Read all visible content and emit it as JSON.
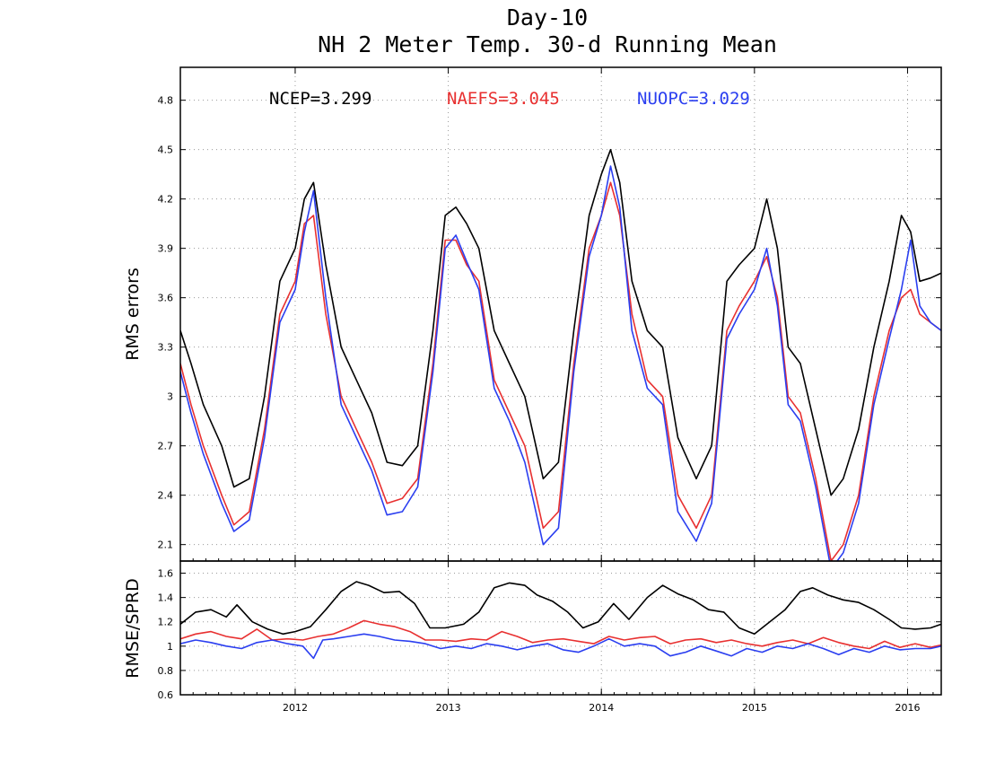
{
  "chart_data": [
    {
      "type": "line",
      "title": "Day-10",
      "subtitle": "NH 2 Meter Temp. 30-d Running Mean",
      "xlabel": "",
      "ylabel": "RMS errors",
      "xlim": [
        2011.25,
        2016.22
      ],
      "ylim": [
        2.0,
        5.0
      ],
      "yticks": [
        2.1,
        2.4,
        2.7,
        3,
        3.3,
        3.6,
        3.9,
        4.2,
        4.5,
        4.8
      ],
      "ytick_labels": [
        "2.1",
        "2.4",
        "2.7",
        "3",
        "3.3",
        "3.6",
        "3.9",
        "4.2",
        "4.5",
        "4.8"
      ],
      "xticks": [
        2012,
        2013,
        2014,
        2015,
        2016
      ],
      "xtick_labels": [
        "2012",
        "2013",
        "2014",
        "2015",
        "2016"
      ],
      "grid": true,
      "legend_placement": "top-left",
      "legend_labels": [
        "NCEP=3.299",
        "NAEFS=3.045",
        "NUOPC=3.029"
      ],
      "series": [
        {
          "name": "NCEP",
          "color": "#000000",
          "x": [
            2011.25,
            2011.32,
            2011.4,
            2011.52,
            2011.6,
            2011.7,
            2011.8,
            2011.9,
            2012.0,
            2012.06,
            2012.12,
            2012.2,
            2012.3,
            2012.4,
            2012.5,
            2012.6,
            2012.7,
            2012.8,
            2012.9,
            2012.98,
            2013.05,
            2013.12,
            2013.2,
            2013.3,
            2013.4,
            2013.5,
            2013.62,
            2013.72,
            2013.82,
            2013.92,
            2014.0,
            2014.06,
            2014.12,
            2014.2,
            2014.3,
            2014.4,
            2014.5,
            2014.62,
            2014.72,
            2014.82,
            2014.9,
            2015.0,
            2015.08,
            2015.15,
            2015.22,
            2015.3,
            2015.4,
            2015.5,
            2015.58,
            2015.68,
            2015.78,
            2015.88,
            2015.96,
            2016.02,
            2016.08,
            2016.15,
            2016.22
          ],
          "values": [
            3.4,
            3.2,
            2.95,
            2.7,
            2.45,
            2.5,
            3.0,
            3.7,
            3.9,
            4.2,
            4.3,
            3.8,
            3.3,
            3.1,
            2.9,
            2.6,
            2.58,
            2.7,
            3.4,
            4.1,
            4.15,
            4.05,
            3.9,
            3.4,
            3.2,
            3.0,
            2.5,
            2.6,
            3.4,
            4.1,
            4.35,
            4.5,
            4.3,
            3.7,
            3.4,
            3.3,
            2.75,
            2.5,
            2.7,
            3.7,
            3.8,
            3.9,
            4.2,
            3.9,
            3.3,
            3.2,
            2.8,
            2.4,
            2.5,
            2.8,
            3.3,
            3.7,
            4.1,
            4.0,
            3.7,
            3.72,
            3.75
          ]
        },
        {
          "name": "NAEFS",
          "color": "#e83030",
          "x": [
            2011.25,
            2011.32,
            2011.4,
            2011.52,
            2011.6,
            2011.7,
            2011.8,
            2011.9,
            2012.0,
            2012.06,
            2012.12,
            2012.2,
            2012.3,
            2012.4,
            2012.5,
            2012.6,
            2012.7,
            2012.8,
            2012.9,
            2012.98,
            2013.05,
            2013.12,
            2013.2,
            2013.3,
            2013.4,
            2013.5,
            2013.62,
            2013.72,
            2013.82,
            2013.92,
            2014.0,
            2014.06,
            2014.12,
            2014.2,
            2014.3,
            2014.4,
            2014.5,
            2014.62,
            2014.72,
            2014.82,
            2014.9,
            2015.0,
            2015.08,
            2015.15,
            2015.22,
            2015.3,
            2015.4,
            2015.5,
            2015.58,
            2015.68,
            2015.78,
            2015.88,
            2015.96,
            2016.02,
            2016.08,
            2016.15,
            2016.22
          ],
          "values": [
            3.2,
            2.95,
            2.7,
            2.4,
            2.22,
            2.3,
            2.8,
            3.5,
            3.7,
            4.05,
            4.1,
            3.5,
            3.0,
            2.8,
            2.6,
            2.35,
            2.38,
            2.5,
            3.2,
            3.95,
            3.95,
            3.8,
            3.7,
            3.1,
            2.9,
            2.7,
            2.2,
            2.3,
            3.2,
            3.9,
            4.1,
            4.3,
            4.1,
            3.5,
            3.1,
            3.0,
            2.4,
            2.2,
            2.4,
            3.4,
            3.55,
            3.7,
            3.85,
            3.6,
            3.0,
            2.9,
            2.5,
            2.0,
            2.1,
            2.4,
            3.0,
            3.4,
            3.6,
            3.65,
            3.5,
            3.45,
            3.4
          ]
        },
        {
          "name": "NUOPC",
          "color": "#2a3ef0",
          "x": [
            2011.25,
            2011.32,
            2011.4,
            2011.52,
            2011.6,
            2011.7,
            2011.8,
            2011.9,
            2012.0,
            2012.06,
            2012.12,
            2012.2,
            2012.3,
            2012.4,
            2012.5,
            2012.6,
            2012.7,
            2012.8,
            2012.9,
            2012.98,
            2013.05,
            2013.12,
            2013.2,
            2013.3,
            2013.4,
            2013.5,
            2013.62,
            2013.72,
            2013.82,
            2013.92,
            2014.0,
            2014.06,
            2014.12,
            2014.2,
            2014.3,
            2014.4,
            2014.5,
            2014.62,
            2014.72,
            2014.82,
            2014.9,
            2015.0,
            2015.08,
            2015.15,
            2015.22,
            2015.3,
            2015.4,
            2015.5,
            2015.58,
            2015.68,
            2015.78,
            2015.88,
            2015.96,
            2016.02,
            2016.08,
            2016.15,
            2016.22
          ],
          "values": [
            3.15,
            2.9,
            2.65,
            2.35,
            2.18,
            2.25,
            2.75,
            3.45,
            3.65,
            4.0,
            4.25,
            3.6,
            2.95,
            2.75,
            2.55,
            2.28,
            2.3,
            2.45,
            3.15,
            3.9,
            3.98,
            3.82,
            3.65,
            3.05,
            2.85,
            2.6,
            2.1,
            2.2,
            3.15,
            3.85,
            4.1,
            4.4,
            4.15,
            3.4,
            3.05,
            2.95,
            2.3,
            2.12,
            2.35,
            3.35,
            3.5,
            3.65,
            3.9,
            3.55,
            2.95,
            2.85,
            2.45,
            1.95,
            2.05,
            2.35,
            2.95,
            3.35,
            3.65,
            3.95,
            3.55,
            3.45,
            3.4
          ]
        }
      ]
    },
    {
      "type": "line",
      "title": "",
      "xlabel": "",
      "ylabel": "RMSE/SPRD",
      "xlim": [
        2011.25,
        2016.22
      ],
      "ylim": [
        0.6,
        1.7
      ],
      "yticks": [
        0.6,
        0.8,
        1,
        1.2,
        1.4,
        1.6
      ],
      "ytick_labels": [
        "0.6",
        "0.8",
        "1",
        "1.2",
        "1.4",
        "1.6"
      ],
      "xticks": [
        2012,
        2013,
        2014,
        2015,
        2016
      ],
      "xtick_labels": [
        "2012",
        "2013",
        "2014",
        "2015",
        "2016"
      ],
      "grid": true,
      "series": [
        {
          "name": "NCEP",
          "color": "#000000",
          "x": [
            2011.25,
            2011.35,
            2011.45,
            2011.55,
            2011.62,
            2011.72,
            2011.82,
            2011.92,
            2012.0,
            2012.1,
            2012.2,
            2012.3,
            2012.4,
            2012.48,
            2012.58,
            2012.68,
            2012.78,
            2012.88,
            2012.98,
            2013.1,
            2013.2,
            2013.3,
            2013.4,
            2013.5,
            2013.58,
            2013.68,
            2013.78,
            2013.88,
            2013.98,
            2014.08,
            2014.18,
            2014.3,
            2014.4,
            2014.5,
            2014.6,
            2014.7,
            2014.8,
            2014.9,
            2015.0,
            2015.1,
            2015.2,
            2015.3,
            2015.38,
            2015.48,
            2015.58,
            2015.68,
            2015.78,
            2015.88,
            2015.96,
            2016.05,
            2016.15,
            2016.22
          ],
          "values": [
            1.18,
            1.28,
            1.3,
            1.24,
            1.34,
            1.2,
            1.14,
            1.1,
            1.12,
            1.16,
            1.3,
            1.45,
            1.53,
            1.5,
            1.44,
            1.45,
            1.35,
            1.15,
            1.15,
            1.18,
            1.28,
            1.48,
            1.52,
            1.5,
            1.42,
            1.37,
            1.28,
            1.15,
            1.2,
            1.35,
            1.22,
            1.4,
            1.5,
            1.43,
            1.38,
            1.3,
            1.28,
            1.15,
            1.1,
            1.2,
            1.3,
            1.45,
            1.48,
            1.42,
            1.38,
            1.36,
            1.3,
            1.22,
            1.15,
            1.14,
            1.15,
            1.18
          ]
        },
        {
          "name": "NAEFS",
          "color": "#e83030",
          "x": [
            2011.25,
            2011.35,
            2011.45,
            2011.55,
            2011.65,
            2011.75,
            2011.85,
            2011.95,
            2012.05,
            2012.15,
            2012.25,
            2012.35,
            2012.45,
            2012.55,
            2012.65,
            2012.75,
            2012.85,
            2012.95,
            2013.05,
            2013.15,
            2013.25,
            2013.35,
            2013.45,
            2013.55,
            2013.65,
            2013.75,
            2013.85,
            2013.95,
            2014.05,
            2014.15,
            2014.25,
            2014.35,
            2014.45,
            2014.55,
            2014.65,
            2014.75,
            2014.85,
            2014.95,
            2015.05,
            2015.15,
            2015.25,
            2015.35,
            2015.45,
            2015.55,
            2015.65,
            2015.75,
            2015.85,
            2015.95,
            2016.05,
            2016.15,
            2016.22
          ],
          "values": [
            1.06,
            1.1,
            1.12,
            1.08,
            1.06,
            1.14,
            1.05,
            1.06,
            1.05,
            1.08,
            1.1,
            1.15,
            1.21,
            1.18,
            1.16,
            1.12,
            1.05,
            1.05,
            1.04,
            1.06,
            1.05,
            1.12,
            1.08,
            1.03,
            1.05,
            1.06,
            1.04,
            1.02,
            1.08,
            1.05,
            1.07,
            1.08,
            1.02,
            1.05,
            1.06,
            1.03,
            1.05,
            1.02,
            1.0,
            1.03,
            1.05,
            1.02,
            1.07,
            1.03,
            1.0,
            0.98,
            1.04,
            0.99,
            1.02,
            0.99,
            1.01
          ]
        },
        {
          "name": "NUOPC",
          "color": "#2a3ef0",
          "x": [
            2011.25,
            2011.35,
            2011.45,
            2011.55,
            2011.65,
            2011.75,
            2011.85,
            2011.95,
            2012.05,
            2012.12,
            2012.18,
            2012.25,
            2012.35,
            2012.45,
            2012.55,
            2012.65,
            2012.75,
            2012.85,
            2012.95,
            2013.05,
            2013.15,
            2013.25,
            2013.35,
            2013.45,
            2013.55,
            2013.65,
            2013.75,
            2013.85,
            2013.95,
            2014.05,
            2014.15,
            2014.25,
            2014.35,
            2014.45,
            2014.55,
            2014.65,
            2014.75,
            2014.85,
            2014.95,
            2015.05,
            2015.15,
            2015.25,
            2015.35,
            2015.45,
            2015.55,
            2015.65,
            2015.75,
            2015.85,
            2015.95,
            2016.05,
            2016.15,
            2016.22
          ],
          "values": [
            1.02,
            1.05,
            1.03,
            1.0,
            0.98,
            1.03,
            1.05,
            1.02,
            1.0,
            0.9,
            1.05,
            1.06,
            1.08,
            1.1,
            1.08,
            1.05,
            1.04,
            1.02,
            0.98,
            1.0,
            0.98,
            1.02,
            1.0,
            0.97,
            1.0,
            1.02,
            0.97,
            0.95,
            1.0,
            1.06,
            1.0,
            1.02,
            1.0,
            0.92,
            0.95,
            1.0,
            0.96,
            0.92,
            0.98,
            0.95,
            1.0,
            0.98,
            1.02,
            0.98,
            0.93,
            0.98,
            0.95,
            1.0,
            0.97,
            0.98,
            0.98,
            1.0
          ]
        }
      ]
    }
  ]
}
